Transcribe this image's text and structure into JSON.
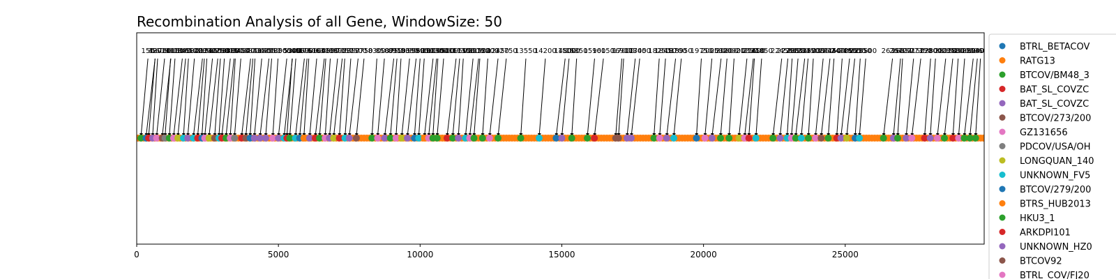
{
  "chart_data": {
    "type": "scatter",
    "title": "Recombination Analysis of all Gene, WindowSize: 50",
    "xlabel": "",
    "ylabel": "",
    "xlim": [
      0,
      29903
    ],
    "x_ticks": [
      0,
      5000,
      10000,
      15000,
      20000,
      25000
    ],
    "y_ticks": [],
    "grid": false,
    "legend_position": "outside-right",
    "baseline_color": "#ff7f0e",
    "legend": [
      {
        "name": "BTRL_BETACOV",
        "color": "#1f77b4"
      },
      {
        "name": "RATG13",
        "color": "#ff7f0e"
      },
      {
        "name": "BTCOV/BM48_3",
        "color": "#2ca02c"
      },
      {
        "name": "BAT_SL_COVZC",
        "color": "#d62728"
      },
      {
        "name": "BAT_SL_COVZC",
        "color": "#9467bd"
      },
      {
        "name": "BTCOV/273/200",
        "color": "#8c564b"
      },
      {
        "name": "GZ131656",
        "color": "#e377c2"
      },
      {
        "name": "PDCOV/USA/OH",
        "color": "#7f7f7f"
      },
      {
        "name": "LONGQUAN_140",
        "color": "#bcbd22"
      },
      {
        "name": "UNKNOWN_FV5",
        "color": "#17becf"
      },
      {
        "name": "BTCOV/279/200",
        "color": "#1f77b4"
      },
      {
        "name": "BTRS_HUB2013",
        "color": "#ff7f0e"
      },
      {
        "name": "HKU3_1",
        "color": "#2ca02c"
      },
      {
        "name": "ARKDPI101",
        "color": "#d62728"
      },
      {
        "name": "UNKNOWN_HZ0",
        "color": "#9467bd"
      },
      {
        "name": "BTCOV92",
        "color": "#8c564b"
      },
      {
        "name": "BTRL_COV/FJ20",
        "color": "#e377c2"
      }
    ],
    "points": [
      {
        "x": 150,
        "series": 2
      },
      {
        "x": 330,
        "series": 0
      },
      {
        "x": 420,
        "series": 3
      },
      {
        "x": 560,
        "series": 4
      },
      {
        "x": 700,
        "series": 6
      },
      {
        "x": 900,
        "series": 5
      },
      {
        "x": 1000,
        "series": 7
      },
      {
        "x": 1150,
        "series": 2
      },
      {
        "x": 1300,
        "series": 6
      },
      {
        "x": 1450,
        "series": 8
      },
      {
        "x": 1650,
        "series": 9
      },
      {
        "x": 1800,
        "series": 4
      },
      {
        "x": 2000,
        "series": 9
      },
      {
        "x": 2150,
        "series": 3
      },
      {
        "x": 2300,
        "series": 0
      },
      {
        "x": 2400,
        "series": 6
      },
      {
        "x": 2550,
        "series": 8
      },
      {
        "x": 2750,
        "series": 5
      },
      {
        "x": 2900,
        "series": 9
      },
      {
        "x": 3000,
        "series": 3
      },
      {
        "x": 3150,
        "series": 2
      },
      {
        "x": 3300,
        "series": 6
      },
      {
        "x": 3450,
        "series": 7
      },
      {
        "x": 3700,
        "series": 3
      },
      {
        "x": 3850,
        "series": 5
      },
      {
        "x": 4000,
        "series": 0
      },
      {
        "x": 4150,
        "series": 4
      },
      {
        "x": 4350,
        "series": 4
      },
      {
        "x": 4550,
        "series": 4
      },
      {
        "x": 4800,
        "series": 6
      },
      {
        "x": 5000,
        "series": 4
      },
      {
        "x": 5200,
        "series": 9
      },
      {
        "x": 5300,
        "series": 3
      },
      {
        "x": 5400,
        "series": 2
      },
      {
        "x": 5600,
        "series": 9
      },
      {
        "x": 5750,
        "series": 0
      },
      {
        "x": 5900,
        "series": 1
      },
      {
        "x": 6100,
        "series": 4
      },
      {
        "x": 6300,
        "series": 3
      },
      {
        "x": 6450,
        "series": 2
      },
      {
        "x": 6650,
        "series": 6
      },
      {
        "x": 6800,
        "series": 4
      },
      {
        "x": 6950,
        "series": 8
      },
      {
        "x": 7150,
        "series": 3
      },
      {
        "x": 7350,
        "series": 9
      },
      {
        "x": 7500,
        "series": 4
      },
      {
        "x": 7750,
        "series": 5
      },
      {
        "x": 8300,
        "series": 2
      },
      {
        "x": 8500,
        "series": 6
      },
      {
        "x": 8750,
        "series": 4
      },
      {
        "x": 8950,
        "series": 2
      },
      {
        "x": 9150,
        "series": 6
      },
      {
        "x": 9350,
        "series": 8
      },
      {
        "x": 9550,
        "series": 4
      },
      {
        "x": 9800,
        "series": 0
      },
      {
        "x": 9950,
        "series": 9
      },
      {
        "x": 10150,
        "series": 1
      },
      {
        "x": 10300,
        "series": 6
      },
      {
        "x": 10450,
        "series": 2
      },
      {
        "x": 10600,
        "series": 2
      },
      {
        "x": 10950,
        "series": 3
      },
      {
        "x": 11150,
        "series": 2
      },
      {
        "x": 11350,
        "series": 4
      },
      {
        "x": 11600,
        "series": 9
      },
      {
        "x": 11750,
        "series": 6
      },
      {
        "x": 11900,
        "series": 2
      },
      {
        "x": 12200,
        "series": 2
      },
      {
        "x": 12450,
        "series": 6
      },
      {
        "x": 12750,
        "series": 2
      },
      {
        "x": 13550,
        "series": 2
      },
      {
        "x": 14200,
        "series": 9
      },
      {
        "x": 14800,
        "series": 0
      },
      {
        "x": 15000,
        "series": 4
      },
      {
        "x": 15350,
        "series": 2
      },
      {
        "x": 15900,
        "series": 2
      },
      {
        "x": 16150,
        "series": 3
      },
      {
        "x": 16900,
        "series": 5
      },
      {
        "x": 17000,
        "series": 5
      },
      {
        "x": 17300,
        "series": 4
      },
      {
        "x": 17450,
        "series": 4
      },
      {
        "x": 18250,
        "series": 2
      },
      {
        "x": 18450,
        "series": 6
      },
      {
        "x": 18700,
        "series": 4
      },
      {
        "x": 18950,
        "series": 9
      },
      {
        "x": 19750,
        "series": 0
      },
      {
        "x": 20050,
        "series": 6
      },
      {
        "x": 20300,
        "series": 4
      },
      {
        "x": 20600,
        "series": 2
      },
      {
        "x": 20900,
        "series": 2
      },
      {
        "x": 21250,
        "series": 8
      },
      {
        "x": 21450,
        "series": 6
      },
      {
        "x": 21600,
        "series": 3
      },
      {
        "x": 21850,
        "series": 9
      },
      {
        "x": 22450,
        "series": 2
      },
      {
        "x": 22700,
        "series": 4
      },
      {
        "x": 22950,
        "series": 9
      },
      {
        "x": 23100,
        "series": 6
      },
      {
        "x": 23250,
        "series": 2
      },
      {
        "x": 23450,
        "series": 9
      },
      {
        "x": 23700,
        "series": 2
      },
      {
        "x": 23950,
        "series": 6
      },
      {
        "x": 24150,
        "series": 5
      },
      {
        "x": 24400,
        "series": 2
      },
      {
        "x": 24700,
        "series": 3
      },
      {
        "x": 24850,
        "series": 4
      },
      {
        "x": 25050,
        "series": 8
      },
      {
        "x": 25350,
        "series": 0
      },
      {
        "x": 25500,
        "series": 9
      },
      {
        "x": 26350,
        "series": 2
      },
      {
        "x": 26700,
        "series": 4
      },
      {
        "x": 26850,
        "series": 2
      },
      {
        "x": 27150,
        "series": 4
      },
      {
        "x": 27350,
        "series": 6
      },
      {
        "x": 27800,
        "series": 3
      },
      {
        "x": 28000,
        "series": 4
      },
      {
        "x": 28250,
        "series": 6
      },
      {
        "x": 28500,
        "series": 2
      },
      {
        "x": 28800,
        "series": 3
      },
      {
        "x": 29000,
        "series": 6
      },
      {
        "x": 29200,
        "series": 2
      },
      {
        "x": 29400,
        "series": 2
      },
      {
        "x": 29600,
        "series": 2
      }
    ]
  }
}
